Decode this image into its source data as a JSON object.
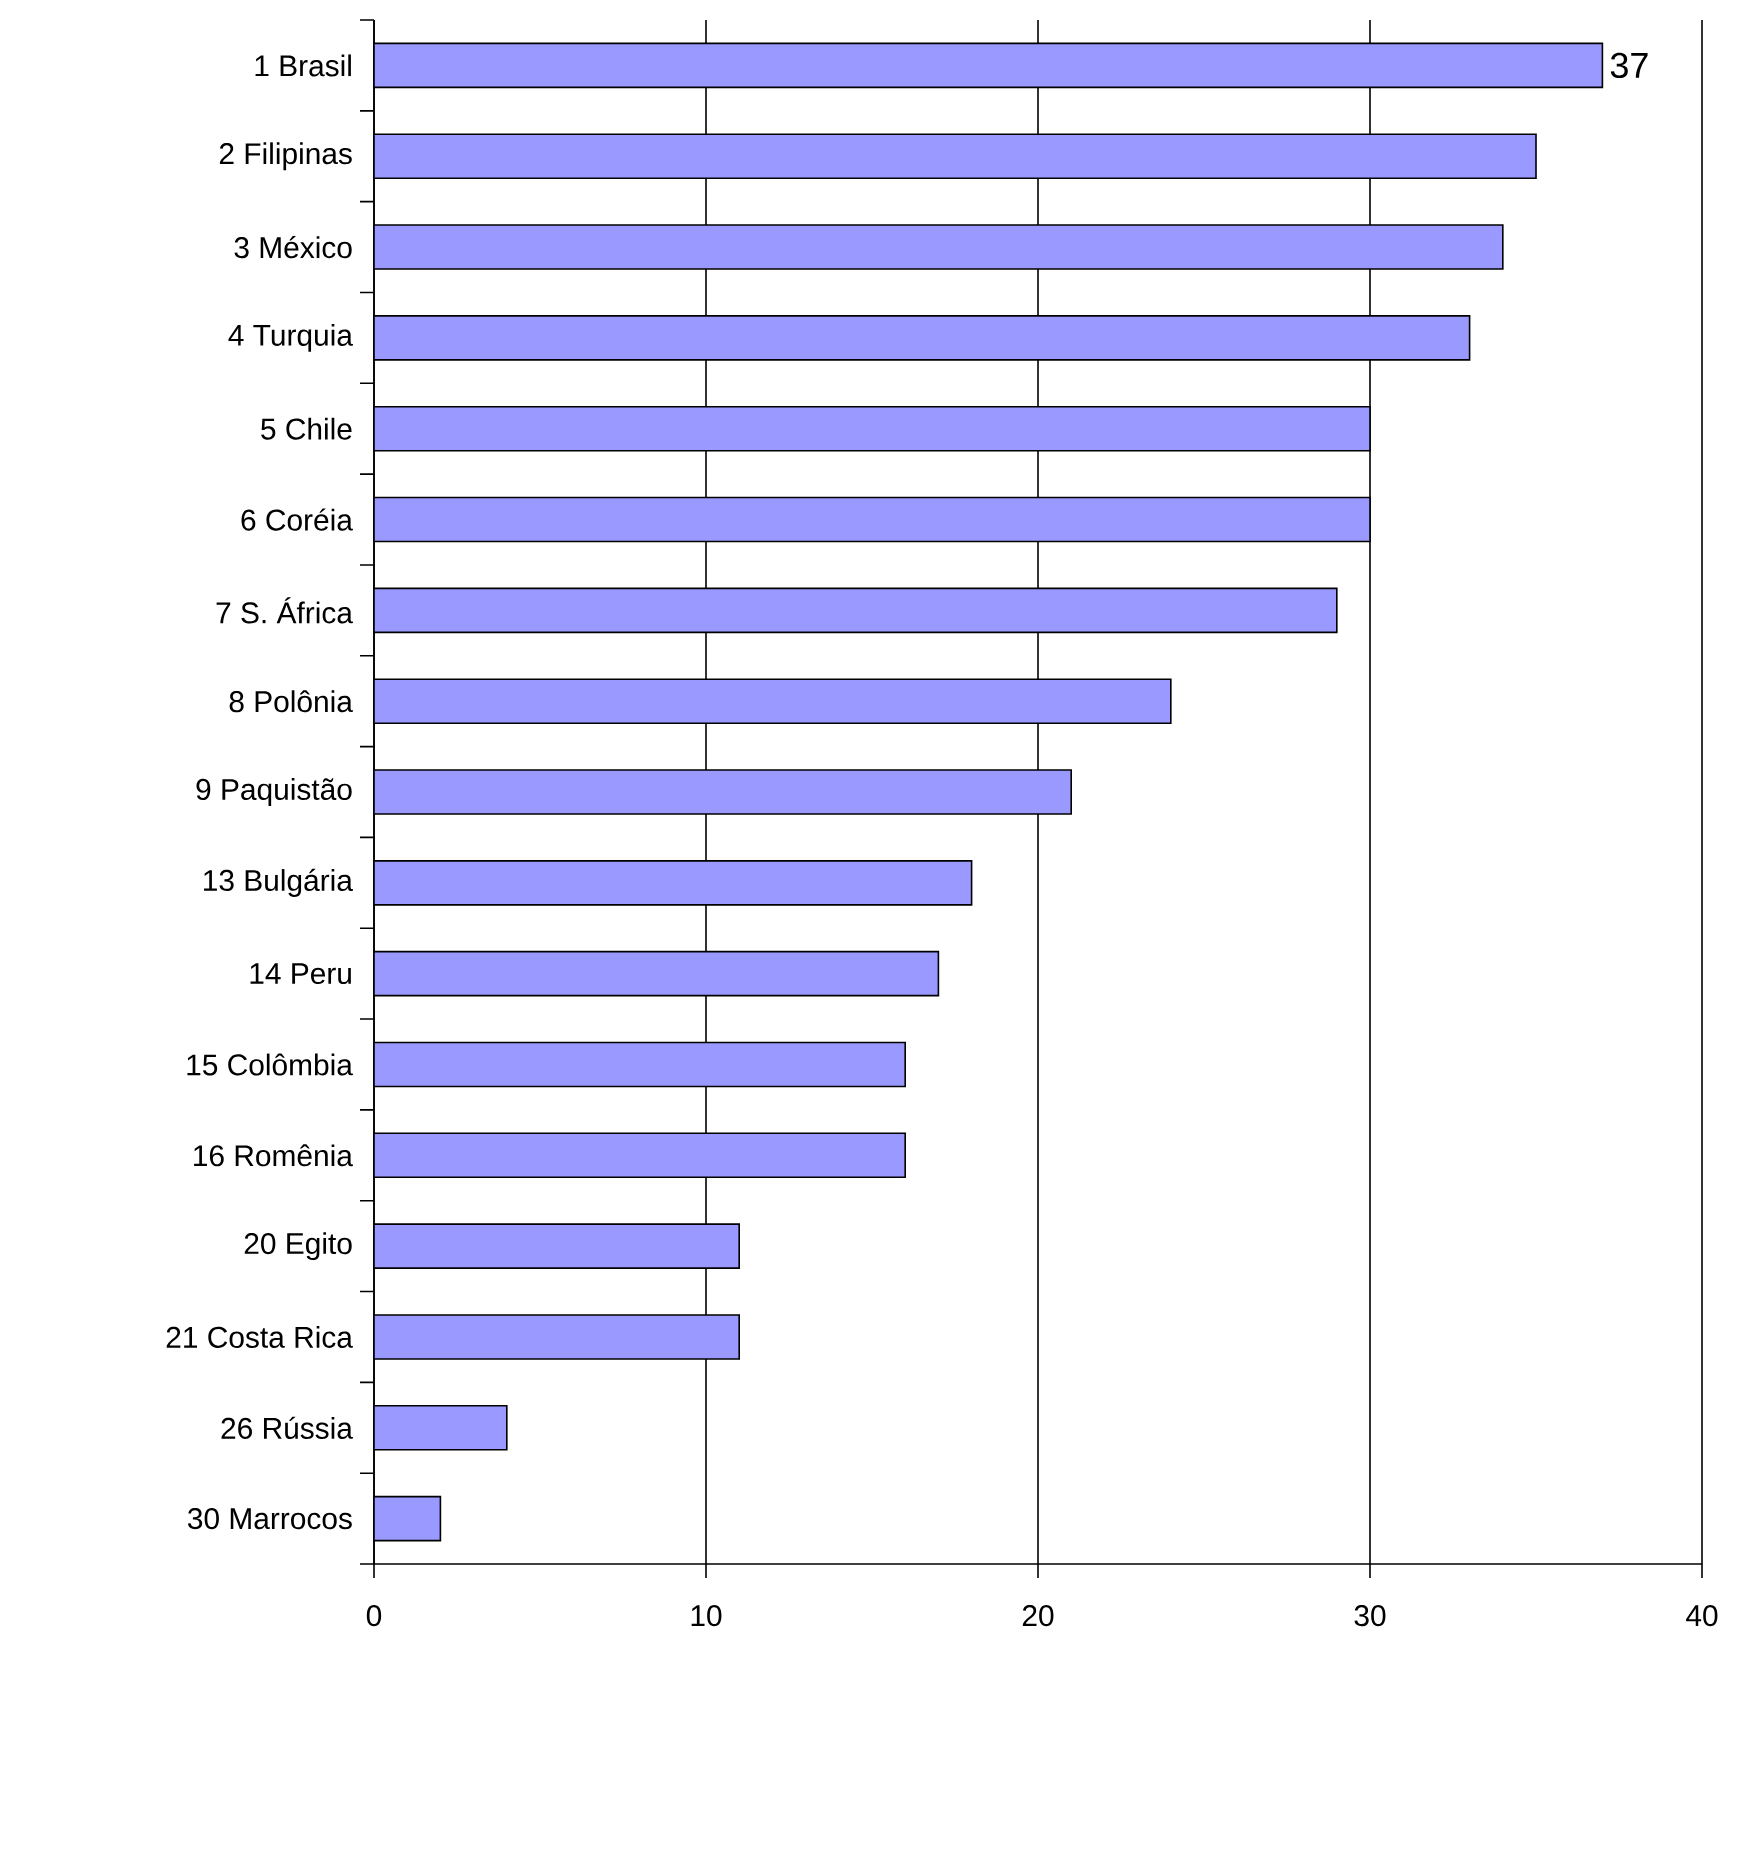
{
  "chart_data": {
    "type": "bar",
    "orientation": "horizontal",
    "categories": [
      "1 Brasil",
      "2 Filipinas",
      "3 México",
      "4 Turquia",
      "5 Chile",
      "6 Coréia",
      "7 S. África",
      "8 Polônia",
      "9 Paquistão",
      "13 Bulgária",
      "14 Peru",
      "15 Colômbia",
      "16 Romênia",
      "20 Egito",
      "21 Costa Rica",
      "26 Rússia",
      "30 Marrocos"
    ],
    "values": [
      37,
      35,
      34,
      33,
      30,
      30,
      29,
      24,
      21,
      18,
      17,
      16,
      16,
      11,
      11,
      4,
      2
    ],
    "value_labels": [
      "37",
      null,
      null,
      null,
      null,
      null,
      null,
      null,
      null,
      null,
      null,
      null,
      null,
      null,
      null,
      null,
      null
    ],
    "color": "#9999ff",
    "xlim": [
      0,
      40
    ],
    "xticks": [
      0,
      10,
      20,
      30,
      40
    ],
    "grid": "x"
  }
}
